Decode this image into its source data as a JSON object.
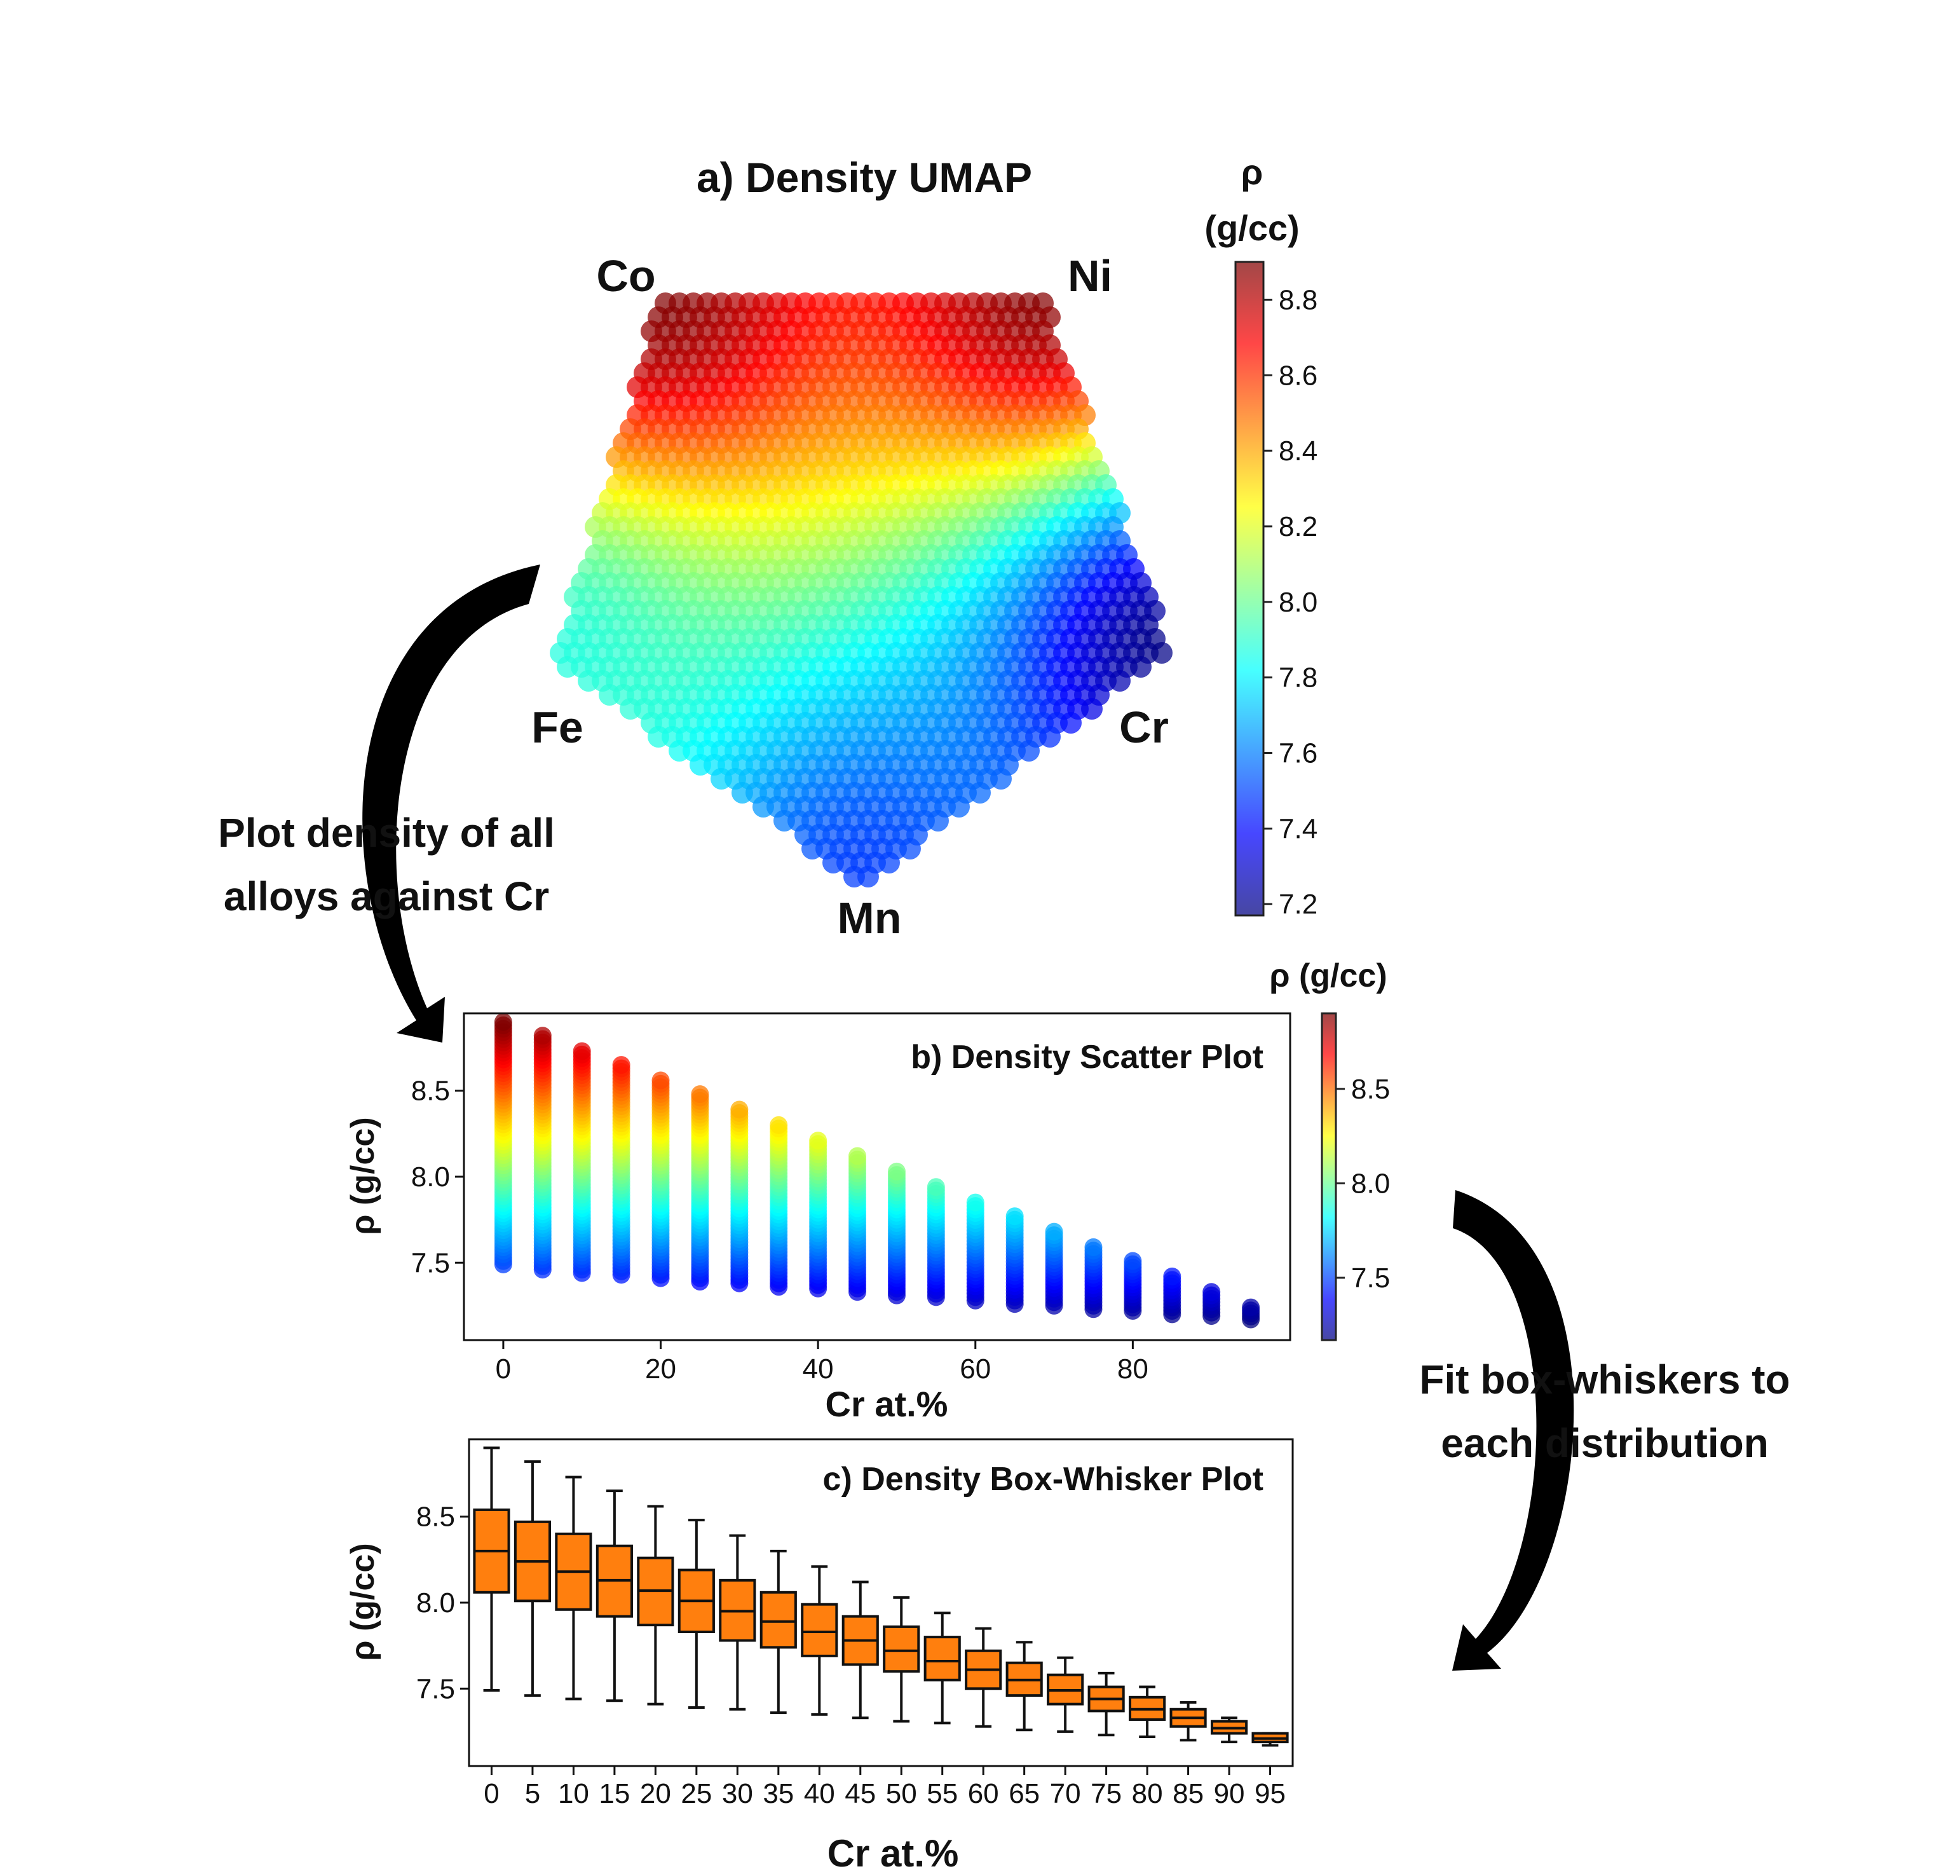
{
  "colors": {
    "jet": [
      "#00007f",
      "#0000ff",
      "#0080ff",
      "#00ffff",
      "#80ff80",
      "#ffff00",
      "#ff8000",
      "#ff0000",
      "#7f0000"
    ],
    "box_fill": "#ff7f0e",
    "text": "#111111",
    "arrow": "#000000"
  },
  "chart_data": [
    {
      "type": "scatter",
      "title": "a) Density UMAP",
      "vertex_labels": [
        "Co",
        "Ni",
        "Cr",
        "Mn",
        "Fe"
      ],
      "colorbar": {
        "label_lines": [
          "ρ",
          "(g/cc)"
        ],
        "range": [
          7.17,
          8.9
        ],
        "ticks": [
          7.2,
          7.4,
          7.6,
          7.8,
          8.0,
          8.2,
          8.4,
          8.6,
          8.8
        ],
        "tick_labels": [
          "7.2",
          "7.4",
          "7.6",
          "7.8",
          "8.0",
          "8.2",
          "8.4",
          "8.6",
          "8.8"
        ]
      }
    },
    {
      "type": "scatter",
      "title": "b) Density Scatter Plot",
      "xlabel": "Cr at.%",
      "ylabel": "ρ (g/cc)",
      "xlim": [
        -5,
        100
      ],
      "ylim": [
        7.05,
        8.95
      ],
      "xticks": [
        0,
        20,
        40,
        60,
        80
      ],
      "xtick_labels": [
        "0",
        "20",
        "40",
        "60",
        "80"
      ],
      "yticks": [
        7.5,
        8.0,
        8.5
      ],
      "ytick_labels": [
        "7.5",
        "8.0",
        "8.5"
      ],
      "x": [
        0,
        5,
        10,
        15,
        20,
        25,
        30,
        35,
        40,
        45,
        50,
        55,
        60,
        65,
        70,
        75,
        80,
        85,
        90,
        95
      ],
      "y_min": [
        7.49,
        7.46,
        7.44,
        7.43,
        7.41,
        7.39,
        7.38,
        7.36,
        7.35,
        7.33,
        7.31,
        7.3,
        7.28,
        7.26,
        7.25,
        7.23,
        7.22,
        7.2,
        7.19,
        7.17
      ],
      "y_max": [
        8.9,
        8.82,
        8.73,
        8.65,
        8.56,
        8.48,
        8.39,
        8.3,
        8.21,
        8.12,
        8.03,
        7.94,
        7.85,
        7.77,
        7.68,
        7.59,
        7.51,
        7.42,
        7.33,
        7.24
      ],
      "colorbar": {
        "label": "ρ (g/cc)",
        "range": [
          7.17,
          8.9
        ],
        "ticks": [
          7.5,
          8.0,
          8.5
        ],
        "tick_labels": [
          "7.5",
          "8.0",
          "8.5"
        ]
      }
    },
    {
      "type": "box",
      "title": "c) Density Box-Whisker Plot",
      "xlabel": "Cr at.%",
      "ylabel": "ρ (g/cc)",
      "ylim": [
        7.05,
        8.95
      ],
      "yticks": [
        7.5,
        8.0,
        8.5
      ],
      "ytick_labels": [
        "7.5",
        "8.0",
        "8.5"
      ],
      "categories": [
        "0",
        "5",
        "10",
        "15",
        "20",
        "25",
        "30",
        "35",
        "40",
        "45",
        "50",
        "55",
        "60",
        "65",
        "70",
        "75",
        "80",
        "85",
        "90",
        "95"
      ],
      "whisker_low": [
        7.49,
        7.46,
        7.44,
        7.43,
        7.41,
        7.39,
        7.38,
        7.36,
        7.35,
        7.33,
        7.31,
        7.3,
        7.28,
        7.26,
        7.25,
        7.23,
        7.22,
        7.2,
        7.19,
        7.17
      ],
      "q1": [
        8.06,
        8.01,
        7.96,
        7.92,
        7.87,
        7.83,
        7.78,
        7.74,
        7.69,
        7.64,
        7.6,
        7.55,
        7.5,
        7.46,
        7.41,
        7.37,
        7.32,
        7.28,
        7.24,
        7.19
      ],
      "median": [
        8.3,
        8.24,
        8.18,
        8.13,
        8.07,
        8.01,
        7.95,
        7.89,
        7.83,
        7.78,
        7.72,
        7.66,
        7.61,
        7.55,
        7.49,
        7.44,
        7.38,
        7.33,
        7.27,
        7.21
      ],
      "q3": [
        8.54,
        8.47,
        8.4,
        8.33,
        8.26,
        8.19,
        8.13,
        8.06,
        7.99,
        7.92,
        7.86,
        7.8,
        7.72,
        7.65,
        7.58,
        7.51,
        7.45,
        7.38,
        7.31,
        7.24
      ],
      "whisker_high": [
        8.9,
        8.82,
        8.73,
        8.65,
        8.56,
        8.48,
        8.39,
        8.3,
        8.21,
        8.12,
        8.03,
        7.94,
        7.85,
        7.77,
        7.68,
        7.59,
        7.51,
        7.42,
        7.33,
        7.24
      ]
    }
  ],
  "annotations": {
    "left_arrow_lines": [
      "Plot density of all",
      "alloys against Cr"
    ],
    "right_arrow_lines": [
      "Fit box-whiskers to",
      "each distribution"
    ]
  }
}
